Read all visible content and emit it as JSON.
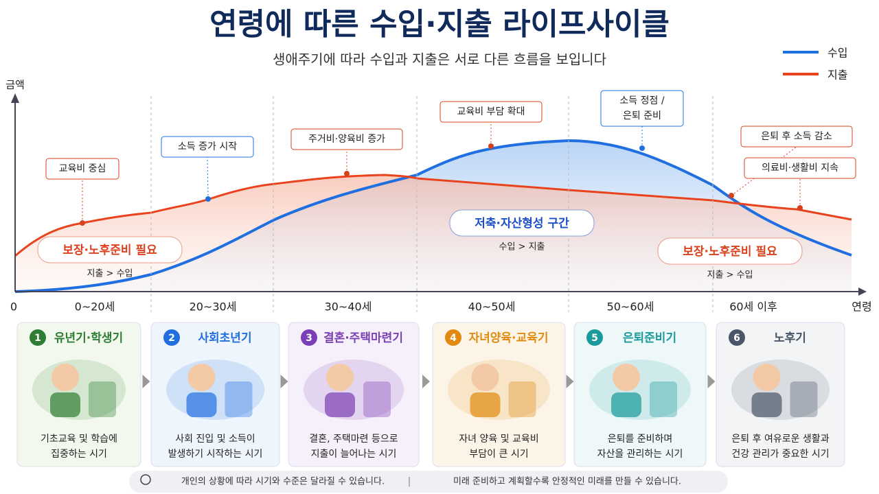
{
  "title": "연령에 따른 수입·지출 라이프사이클",
  "subtitle": "생애주기에 따라 수입과 지출은 서로 다른 흐름을 보입니다",
  "legend": [
    {
      "label": "수입",
      "color": "#1f6fe0"
    },
    {
      "label": "지출",
      "color": "#e8431c"
    }
  ],
  "axis": {
    "y_label": "금액",
    "origin": "0",
    "x_label": "연령",
    "age_bands": [
      "0~20세",
      "20~30세",
      "30~40세",
      "40~50세",
      "50~60세",
      "60세 이후"
    ]
  },
  "callouts": [
    {
      "lines": [
        "교육비 중심"
      ],
      "kind": "expense"
    },
    {
      "lines": [
        "소득 증가 시작"
      ],
      "kind": "income"
    },
    {
      "lines": [
        "주거비·양육비 증가"
      ],
      "kind": "expense"
    },
    {
      "lines": [
        "교육비 부담 확대"
      ],
      "kind": "expense"
    },
    {
      "lines": [
        "소득 정점 /",
        "은퇴 준비"
      ],
      "kind": "income"
    },
    {
      "lines": [
        "은퇴 후 소득 감소"
      ],
      "kind": "expense"
    },
    {
      "lines": [
        "의료비·생활비 지속"
      ],
      "kind": "expense"
    }
  ],
  "zones": [
    {
      "title": "보장·노후준비 필요",
      "note": "지출 > 수입"
    },
    {
      "title": "저축·자산형성 구간",
      "note": "수입 > 지출"
    },
    {
      "title": "보장·노후준비 필요",
      "note": "지출 > 수입"
    }
  ],
  "stages": [
    {
      "number": 1,
      "title": "유년기·학생기",
      "desc": [
        "기초교육 및 학습에",
        "집중하는 시기"
      ]
    },
    {
      "number": 2,
      "title": "사회초년기",
      "desc": [
        "사회 진입 및 소득이",
        "발생하기 시작하는 시기"
      ]
    },
    {
      "number": 3,
      "title": "결혼·주택마련기",
      "desc": [
        "결혼, 주택마련 등으로",
        "지출이 늘어나는 시기"
      ]
    },
    {
      "number": 4,
      "title": "자녀양육·교육기",
      "desc": [
        "자녀 양육 및 교육비",
        "부담이 큰 시기"
      ]
    },
    {
      "number": 5,
      "title": "은퇴준비기",
      "desc": [
        "은퇴를 준비하며",
        "자산을 관리하는 시기"
      ]
    },
    {
      "number": 6,
      "title": "노후기",
      "desc": [
        "은퇴 후 여유로운 생활과",
        "건강 관리가 중요한 시기"
      ]
    }
  ],
  "footer": [
    "개인의 상황에 따라 시기와 수준은 달라질 수 있습니다.",
    "미래 준비하고 계획할수록 안정적인 미래를 만들 수 있습니다."
  ]
}
